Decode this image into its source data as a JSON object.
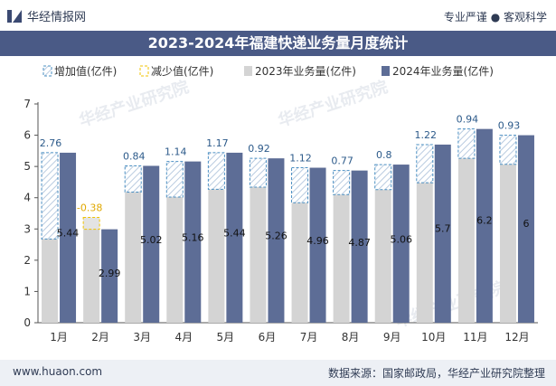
{
  "header": {
    "brand": "华经情报网",
    "slogan": "专业严谨 ● 客观科学"
  },
  "footer": {
    "website": "www.huaon.com",
    "source": "数据来源：国家邮政局，华经产业研究院整理"
  },
  "watermark": "华经产业研究院",
  "colors": {
    "title_bg": "#4a5a86",
    "bar_2023": "#d4d4d4",
    "bar_2024": "#5d6d96",
    "increase_border": "#4a8fc2",
    "decrease_border": "#f0c300",
    "decrease_label": "#e0a800"
  },
  "chart_data": {
    "type": "bar",
    "title": "2023-2024年福建快递业务量月度统计",
    "categories": [
      "1月",
      "2月",
      "3月",
      "4月",
      "5月",
      "6月",
      "7月",
      "8月",
      "9月",
      "10月",
      "11月",
      "12月"
    ],
    "series": [
      {
        "name": "增加值(亿件)",
        "values": [
          2.76,
          null,
          0.84,
          1.14,
          1.17,
          0.92,
          1.12,
          0.77,
          0.8,
          1.22,
          0.94,
          0.93
        ]
      },
      {
        "name": "减少值(亿件)",
        "values": [
          null,
          -0.38,
          null,
          null,
          null,
          null,
          null,
          null,
          null,
          null,
          null,
          null
        ]
      },
      {
        "name": "2023年业务量(亿件)",
        "values": [
          2.68,
          3.37,
          4.18,
          4.02,
          4.27,
          4.34,
          3.84,
          4.1,
          4.26,
          4.48,
          5.26,
          5.07
        ]
      },
      {
        "name": "2024年业务量(亿件)",
        "values": [
          5.44,
          2.99,
          5.02,
          5.16,
          5.44,
          5.26,
          4.96,
          4.87,
          5.06,
          5.7,
          6.2,
          6
        ]
      }
    ],
    "ylim": [
      0,
      7
    ],
    "yticks": [
      "0",
      "1",
      "2",
      "3",
      "4",
      "5",
      "6",
      "7"
    ],
    "legend": "top-left",
    "grid": false
  }
}
